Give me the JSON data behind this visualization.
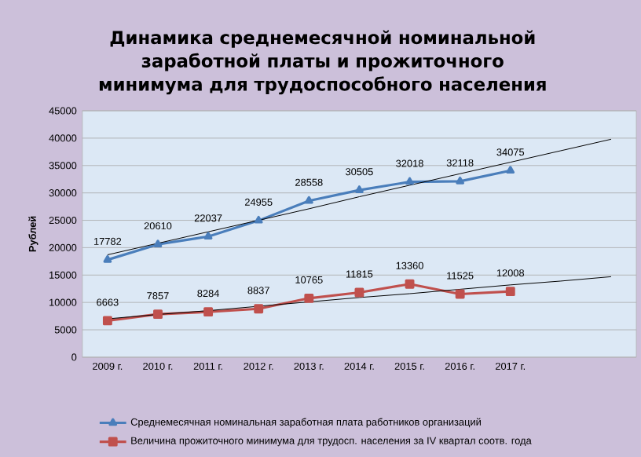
{
  "chart_data": {
    "type": "line",
    "title": "Динамика среднемесячной номинальной заработной платы и прожиточного минимума для трудоспособного населения",
    "ylabel": "Рублей",
    "categories": [
      "2009 г.",
      "2010 г.",
      "2011 г.",
      "2012 г.",
      "2013 г.",
      "2014 г.",
      "2015 г.",
      "2016 г.",
      "2017 г.",
      null,
      null
    ],
    "series": [
      {
        "name": "Среднемесячная номинальная заработная плата работников организаций",
        "color": "#4a7ebb",
        "marker": "triangle",
        "data_labels": true,
        "values": [
          17782,
          20610,
          22037,
          24955,
          28558,
          30505,
          32018,
          32118,
          34075,
          null,
          null
        ]
      },
      {
        "name": "Величина прожиточного минимума для трудосп. населения за IV квартал соотв. года",
        "color": "#c0504d",
        "marker": "square",
        "data_labels": true,
        "values": [
          6663,
          7857,
          8284,
          8837,
          10765,
          11815,
          13360,
          11525,
          12008,
          null,
          null
        ]
      },
      {
        "color": "#000000",
        "marker": "none",
        "values": [
          18700,
          20800,
          22900,
          25000,
          27100,
          29300,
          31400,
          33500,
          35600,
          37700,
          39800
        ]
      },
      {
        "color": "#000000",
        "marker": "none",
        "values": [
          7000,
          7800,
          8500,
          9300,
          10100,
          10900,
          11600,
          12400,
          13200,
          13900,
          14700
        ]
      }
    ],
    "ylim": [
      0,
      45000
    ],
    "yticks": [
      0,
      5000,
      10000,
      15000,
      20000,
      25000,
      30000,
      35000,
      40000,
      45000
    ],
    "grid": "y",
    "legend": "bottom"
  }
}
